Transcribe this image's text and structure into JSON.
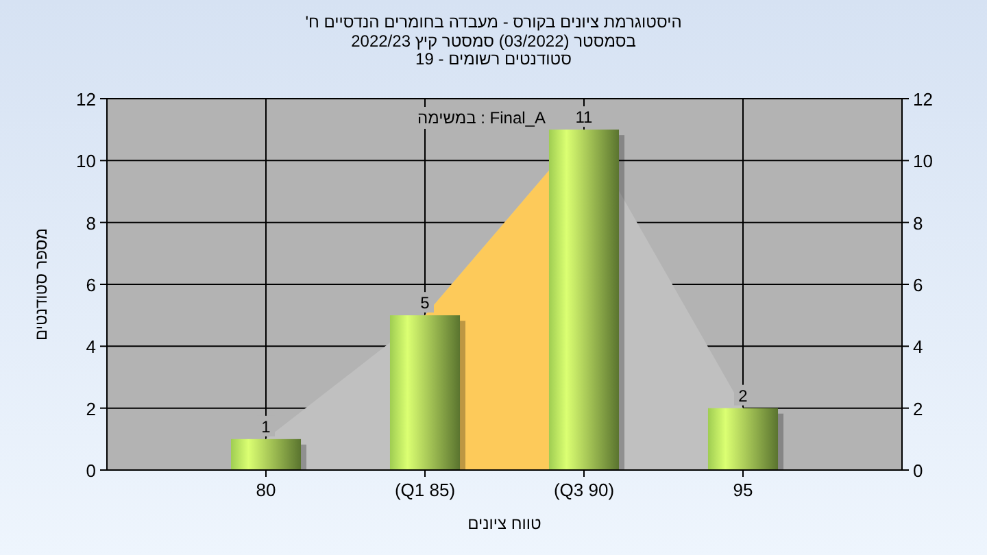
{
  "chart_data": {
    "type": "bar",
    "title": "היסטוגרמת ציונים בקורס - מעבדה בחומרים הנדסיים ח'",
    "subtitle": "בסמסטר (03/2022) סמסטר קיץ 2022/23\nסטודנטים רשומים - 19",
    "xlabel": "טווח ציונים",
    "ylabel": "מספר סטודנטים",
    "annotations": [
      "במשימה : Final_A"
    ],
    "xlim": [
      75,
      100
    ],
    "xticks": [
      80,
      {
        "value": 85,
        "label": "(Q1 85)"
      },
      {
        "value": 90,
        "label": "(Q3 90)"
      },
      95
    ],
    "ylim": [
      0,
      12
    ],
    "yticks": [
      0,
      2,
      4,
      6,
      8,
      10,
      12
    ],
    "y2lim": [
      0,
      12
    ],
    "y2ticks": [
      0,
      2,
      4,
      6,
      8,
      10,
      12
    ],
    "grid": true,
    "series": [
      {
        "type": "area",
        "color": "#c0c0c0",
        "x": [
          80,
          85,
          90,
          95
        ],
        "values": [
          1,
          5,
          11,
          2
        ]
      },
      {
        "type": "area",
        "color": "#fdca5a",
        "x": [
          85,
          90
        ],
        "values": [
          5,
          11
        ]
      },
      {
        "color": "#8fb84a",
        "x": [
          80,
          85,
          90,
          95
        ],
        "values": [
          1,
          5,
          11,
          2
        ],
        "value_labels": [
          "1",
          "5",
          "11",
          "2"
        ]
      }
    ]
  }
}
